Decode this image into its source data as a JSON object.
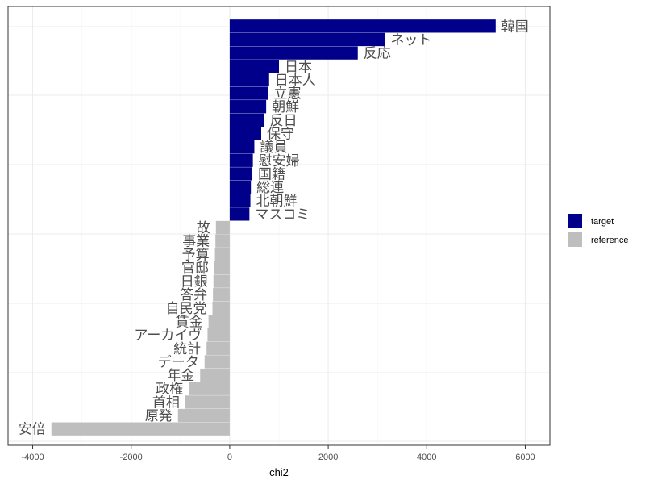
{
  "colors": {
    "target": "#00008B",
    "reference": "#BEBEBE",
    "grid_major": "#EBEBEB",
    "grid_minor": "#F5F5F5",
    "panel_border": "#333333",
    "label_text": "#4D4D4D"
  },
  "chart_data": {
    "type": "bar",
    "orientation": "horizontal",
    "title": "",
    "xlabel": "chi2",
    "ylabel": "",
    "xlim": [
      -4500,
      6500
    ],
    "xticks": [
      -4000,
      -2000,
      0,
      2000,
      4000,
      6000
    ],
    "xtick_labels": [
      "-4000",
      "-2000",
      "0",
      "2000",
      "4000",
      "6000"
    ],
    "grid": true,
    "legend": {
      "placement": "right",
      "entries": [
        {
          "key": "target",
          "label": "target"
        },
        {
          "key": "reference",
          "label": "reference"
        }
      ]
    },
    "bars": [
      {
        "label": "韓国",
        "value": 5400,
        "group": "target"
      },
      {
        "label": "ネット",
        "value": 3150,
        "group": "target"
      },
      {
        "label": "反応",
        "value": 2600,
        "group": "target"
      },
      {
        "label": "日本",
        "value": 1000,
        "group": "target"
      },
      {
        "label": "日本人",
        "value": 800,
        "group": "target"
      },
      {
        "label": "立憲",
        "value": 780,
        "group": "target"
      },
      {
        "label": "朝鮮",
        "value": 740,
        "group": "target"
      },
      {
        "label": "反日",
        "value": 700,
        "group": "target"
      },
      {
        "label": "保守",
        "value": 640,
        "group": "target"
      },
      {
        "label": "議員",
        "value": 500,
        "group": "target"
      },
      {
        "label": "慰安婦",
        "value": 470,
        "group": "target"
      },
      {
        "label": "国籍",
        "value": 460,
        "group": "target"
      },
      {
        "label": "総連",
        "value": 430,
        "group": "target"
      },
      {
        "label": "北朝鮮",
        "value": 420,
        "group": "target"
      },
      {
        "label": "マスコミ",
        "value": 400,
        "group": "target"
      },
      {
        "label": "故",
        "value": -280,
        "group": "reference"
      },
      {
        "label": "事業",
        "value": -290,
        "group": "reference"
      },
      {
        "label": "予算",
        "value": -300,
        "group": "reference"
      },
      {
        "label": "官邸",
        "value": -310,
        "group": "reference"
      },
      {
        "label": "日銀",
        "value": -330,
        "group": "reference"
      },
      {
        "label": "答弁",
        "value": -340,
        "group": "reference"
      },
      {
        "label": "自民党",
        "value": -350,
        "group": "reference"
      },
      {
        "label": "賃金",
        "value": -430,
        "group": "reference"
      },
      {
        "label": "アーカイヴ",
        "value": -450,
        "group": "reference"
      },
      {
        "label": "統計",
        "value": -470,
        "group": "reference"
      },
      {
        "label": "データ",
        "value": -510,
        "group": "reference"
      },
      {
        "label": "年金",
        "value": -600,
        "group": "reference"
      },
      {
        "label": "政権",
        "value": -830,
        "group": "reference"
      },
      {
        "label": "首相",
        "value": -900,
        "group": "reference"
      },
      {
        "label": "原発",
        "value": -1050,
        "group": "reference"
      },
      {
        "label": "安倍",
        "value": -3620,
        "group": "reference"
      }
    ]
  }
}
